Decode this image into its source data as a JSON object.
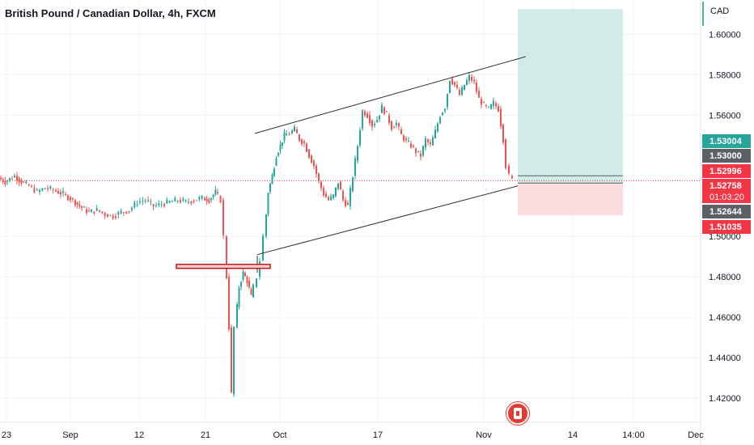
{
  "header": {
    "title": "British Pound / Canadian Dollar, 4h, FXCM",
    "currency": "CAD"
  },
  "colors": {
    "up": "#26a69a",
    "down": "#ef5350",
    "grid": "#f0f3fa",
    "profit_zone": "#d1ece7",
    "loss_zone": "#fcdde0",
    "tag_green": "#26a69a",
    "tag_gray": "#5b5f66",
    "tag_red": "#f23645"
  },
  "chart_data": {
    "type": "candlestick",
    "y_axis": {
      "min": 1.41,
      "max": 1.615,
      "ticks": [
        "1.60000",
        "1.58000",
        "1.56000",
        "1.50000",
        "1.48000",
        "1.46000",
        "1.44000",
        "1.42000"
      ]
    },
    "x_axis": {
      "ticks": [
        "23",
        "Sep",
        "12",
        "21",
        "Oct",
        "17",
        "Nov",
        "14",
        "14:00",
        "Dec"
      ]
    },
    "ohlc_path": [
      [
        0,
        1.529
      ],
      [
        8,
        1.527
      ],
      [
        20,
        1.53
      ],
      [
        28,
        1.527
      ],
      [
        38,
        1.525
      ],
      [
        48,
        1.522
      ],
      [
        58,
        1.524
      ],
      [
        68,
        1.523
      ],
      [
        80,
        1.521
      ],
      [
        92,
        1.518
      ],
      [
        100,
        1.515
      ],
      [
        112,
        1.512
      ],
      [
        122,
        1.513
      ],
      [
        132,
        1.511
      ],
      [
        142,
        1.51
      ],
      [
        152,
        1.512
      ],
      [
        162,
        1.513
      ],
      [
        172,
        1.517
      ],
      [
        182,
        1.518
      ],
      [
        192,
        1.515
      ],
      [
        202,
        1.516
      ],
      [
        212,
        1.517
      ],
      [
        222,
        1.518
      ],
      [
        232,
        1.517
      ],
      [
        242,
        1.518
      ],
      [
        252,
        1.519
      ],
      [
        260,
        1.518
      ],
      [
        268,
        1.522
      ],
      [
        275,
        1.518
      ],
      [
        279,
        1.5
      ],
      [
        282,
        1.48
      ],
      [
        285,
        1.455
      ],
      [
        288,
        1.422
      ],
      [
        292,
        1.455
      ],
      [
        297,
        1.475
      ],
      [
        302,
        1.482
      ],
      [
        307,
        1.478
      ],
      [
        312,
        1.47
      ],
      [
        316,
        1.475
      ],
      [
        320,
        1.48
      ],
      [
        324,
        1.488
      ],
      [
        328,
        1.5
      ],
      [
        333,
        1.522
      ],
      [
        338,
        1.53
      ],
      [
        343,
        1.54
      ],
      [
        348,
        1.545
      ],
      [
        353,
        1.55
      ],
      [
        360,
        1.551
      ],
      [
        366,
        1.553
      ],
      [
        372,
        1.548
      ],
      [
        378,
        1.546
      ],
      [
        384,
        1.54
      ],
      [
        390,
        1.535
      ],
      [
        396,
        1.527
      ],
      [
        402,
        1.521
      ],
      [
        408,
        1.518
      ],
      [
        414,
        1.52
      ],
      [
        420,
        1.527
      ],
      [
        426,
        1.518
      ],
      [
        432,
        1.515
      ],
      [
        438,
        1.53
      ],
      [
        444,
        1.545
      ],
      [
        450,
        1.562
      ],
      [
        456,
        1.56
      ],
      [
        462,
        1.555
      ],
      [
        468,
        1.558
      ],
      [
        474,
        1.564
      ],
      [
        480,
        1.56
      ],
      [
        486,
        1.554
      ],
      [
        492,
        1.556
      ],
      [
        498,
        1.55
      ],
      [
        504,
        1.547
      ],
      [
        510,
        1.545
      ],
      [
        516,
        1.542
      ],
      [
        522,
        1.54
      ],
      [
        528,
        1.548
      ],
      [
        534,
        1.545
      ],
      [
        540,
        1.552
      ],
      [
        546,
        1.56
      ],
      [
        552,
        1.564
      ],
      [
        558,
        1.578
      ],
      [
        564,
        1.575
      ],
      [
        570,
        1.57
      ],
      [
        576,
        1.575
      ],
      [
        582,
        1.579
      ],
      [
        588,
        1.576
      ],
      [
        594,
        1.568
      ],
      [
        600,
        1.565
      ],
      [
        606,
        1.563
      ],
      [
        612,
        1.566
      ],
      [
        618,
        1.563
      ],
      [
        624,
        1.548
      ],
      [
        628,
        1.535
      ],
      [
        632,
        1.53
      ],
      [
        636,
        1.528
      ]
    ],
    "channel_upper": {
      "from": [
        1.551,
        315
      ],
      "to": [
        1.589,
        650
      ]
    },
    "channel_lower": {
      "from": [
        1.491,
        318
      ],
      "to": [
        1.525,
        640
      ]
    },
    "resistance_zone": {
      "price": 1.485
    },
    "position": {
      "entry": 1.5265,
      "target": 1.6125,
      "stop": 1.5104
    },
    "current_price_line": 1.52758,
    "price_tags": [
      {
        "label": "1.53004",
        "price": 1.53004,
        "color": "tag_green"
      },
      {
        "label": "1.53000",
        "price": 1.53,
        "color": "tag_gray"
      },
      {
        "label": "1.52996",
        "price": 1.52996,
        "color": "tag_red",
        "style": "outline"
      },
      {
        "label": "1.52758",
        "price": 1.52758,
        "color": "tag_red",
        "sub": "01:03:20"
      },
      {
        "label": "1.52644",
        "price": 1.52644,
        "color": "tag_gray"
      },
      {
        "label": "1.51035",
        "price": 1.51035,
        "color": "tag_red"
      }
    ]
  }
}
